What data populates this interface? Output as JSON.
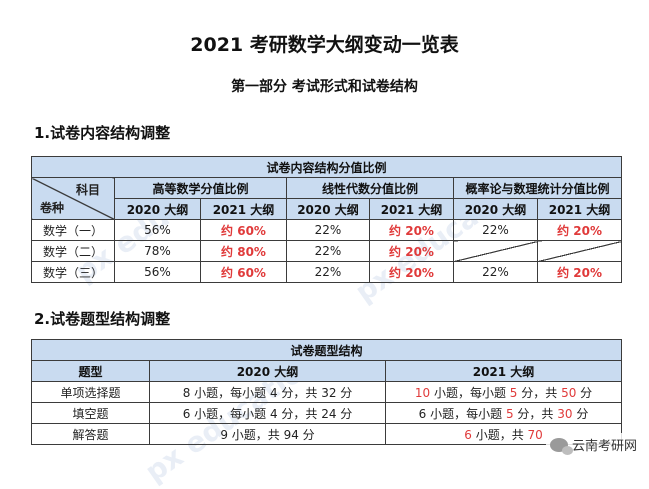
{
  "title": "2021 考研数学大纲变动一览表",
  "subtitle": "第一部分  考试形式和试卷结构",
  "section1": "1.试卷内容结构调整",
  "section2": "2.试卷题型结构调整",
  "table1": {
    "caption": "试卷内容结构分值比例",
    "corner_top": "科目",
    "corner_bottom": "卷种",
    "subjects": [
      "高等数学分值比例",
      "线性代数分值比例",
      "概率论与数理统计分值比例"
    ],
    "years": [
      "2020 大纲",
      "2021 大纲"
    ],
    "rows": [
      {
        "name": "数学（一）",
        "cells": [
          "56%",
          "约 60%",
          "22%",
          "约 20%",
          "22%",
          "约 20%"
        ]
      },
      {
        "name": "数学（二）",
        "cells": [
          "78%",
          "约 80%",
          "22%",
          "约 20%",
          "",
          ""
        ]
      },
      {
        "name": "数学（三）",
        "cells": [
          "56%",
          "约 60%",
          "22%",
          "约 20%",
          "22%",
          "约 20%"
        ]
      }
    ]
  },
  "table2": {
    "caption": "试卷题型结构",
    "headers": [
      "题型",
      "2020 大纲",
      "2021 大纲"
    ],
    "rows": [
      {
        "type": "单项选择题",
        "y2020": "8 小题，每小题 4 分，共 32 分",
        "y2021": {
          "n": "10",
          "a": " 小题，每小题 ",
          "b": "5",
          "c": " 分，共 ",
          "d": "50",
          "e": " 分"
        }
      },
      {
        "type": "填空题",
        "y2020": "6 小题，每小题 4 分，共 24 分",
        "y2021": {
          "n": "6",
          "a": " 小题，每小题 ",
          "b": "5",
          "c": " 分，共 ",
          "d": "30",
          "e": " 分"
        }
      },
      {
        "type": "解答题",
        "y2020": "9 小题，共 94 分",
        "y2021": {
          "n": "6",
          "a": " 小题，共 ",
          "b": "70",
          "c": "",
          "d": "",
          "e": ""
        }
      }
    ]
  },
  "watermark_brand": "云南考研网"
}
